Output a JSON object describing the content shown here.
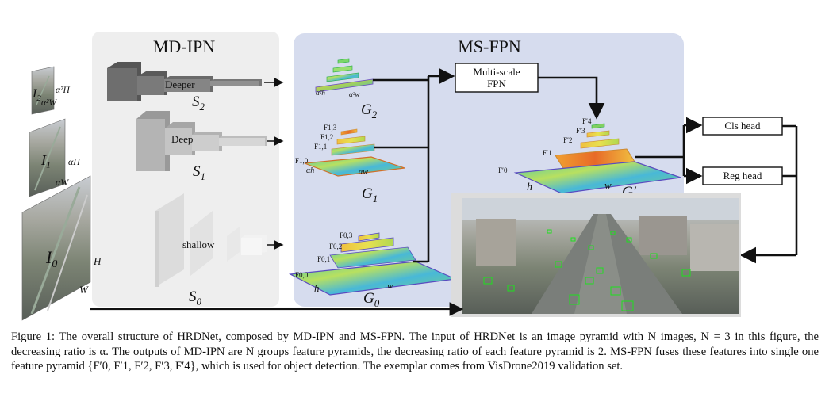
{
  "panels": {
    "left": {
      "title": "MD-IPN"
    },
    "right": {
      "title": "MS-FPN"
    }
  },
  "inputs": {
    "i2": {
      "label": "I",
      "sub": "2",
      "h_label": "α²H",
      "w_label": "α²W"
    },
    "i1": {
      "label": "I",
      "sub": "1",
      "h_label": "αH",
      "w_label": "αW"
    },
    "i0": {
      "label": "I",
      "sub": "0",
      "h_label": "H",
      "w_label": "W"
    }
  },
  "subnets": {
    "s2": {
      "label": "S",
      "sub": "2",
      "block_label": "Deeper"
    },
    "s1": {
      "label": "S",
      "sub": "1",
      "block_label": "Deep"
    },
    "s0": {
      "label": "S",
      "sub": "0",
      "block_label": "shallow"
    }
  },
  "pyramids": {
    "g2": {
      "label": "G",
      "sub": "2",
      "h_label": "α²h",
      "w_label": "α²w"
    },
    "g1": {
      "label": "G",
      "sub": "1",
      "levels": [
        "F1,3",
        "F1,2",
        "F1,1",
        "F1,0"
      ],
      "h_label": "αh",
      "w_label": "αw"
    },
    "g0": {
      "label": "G",
      "sub": "0",
      "levels": [
        "F0,3",
        "F0,2",
        "F0,1",
        "F0,0"
      ],
      "h_label": "h",
      "w_label": "w"
    },
    "gp": {
      "label": "G′",
      "levels": [
        "F′4",
        "F′3",
        "F′2",
        "F′1",
        "F′0"
      ],
      "h_label": "h",
      "w_label": "w"
    }
  },
  "boxes": {
    "fpn_line1": "Multi-scale",
    "fpn_line2": "FPN",
    "cls_head": "Cls head",
    "reg_head": "Reg head"
  },
  "caption": "Figure 1: The overall structure of HRDNet, composed by MD-IPN and MS-FPN. The input of HRDNet is an image pyramid with N images, N = 3 in this figure, the decreasing ratio is α. The outputs of MD-IPN are N groups feature pyramids, the decreasing ratio of each feature pyramid is 2. MS-FPN fuses these features into single one feature pyramid {F′0, F′1, F′2, F′3, F′4}, which is used for object detection. The exemplar comes from VisDrone2019 validation set.",
  "colors": {
    "left_panel": "#eeeeee",
    "right_panel": "#d6dcee",
    "block_dark": "#707070",
    "feature_warm": "#e0a030",
    "feature_cool": "#3cb4c8"
  }
}
